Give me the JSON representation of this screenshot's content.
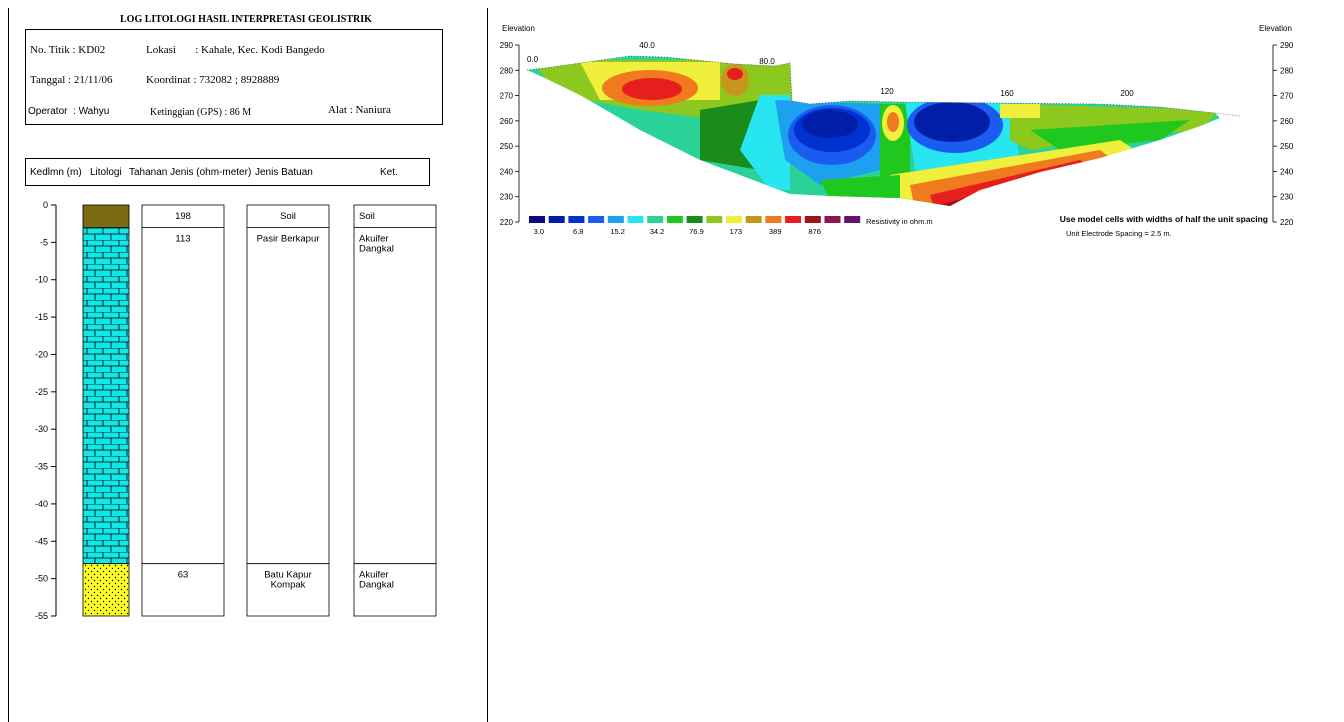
{
  "log": {
    "title": "LOG LITOLOGI HASIL INTERPRETASI GEOLISTRIK",
    "info": {
      "no_titik": "No. Titik : KD02",
      "lokasi": "Lokasi       : Kahale, Kec. Kodi Bangedo",
      "tanggal": "Tanggal : 21/11/06",
      "koordinat": "Koordinat : 732082 ; 8928889",
      "operator": "Operator  : Wahyu",
      "ketinggian": "Ketinggian (GPS) : 86 M",
      "alat": "Alat : Naniura"
    },
    "header": {
      "kedalaman": "Kedlmn (m)",
      "litologi": "Litologi",
      "tahanan": "Tahanan Jenis (ohm-meter)",
      "jenis": "Jenis Batuan",
      "ket": "Ket."
    },
    "depth_ticks": [
      "0",
      "-5",
      "-10",
      "-15",
      "-20",
      "-25",
      "-30",
      "-35",
      "-40",
      "-45",
      "-50",
      "-55"
    ],
    "layers": [
      {
        "top": 0,
        "bottom": -3,
        "resistivity": "198",
        "jenis": "Soil",
        "ket": "Soil",
        "color": "#7a6a12",
        "pattern": "solid"
      },
      {
        "top": -3,
        "bottom": -48,
        "resistivity": "113",
        "jenis": "Pasir Berkapur",
        "ket": "Akuifer Dangkal",
        "color": "#12e6e6",
        "pattern": "brick"
      },
      {
        "top": -48,
        "bottom": -55,
        "resistivity": "63",
        "jenis": "Batu Kapur Kompak",
        "ket": "Akuifer Dangkal",
        "color": "#ffff2a",
        "pattern": "dots"
      }
    ]
  },
  "section": {
    "elev_label_left": "Elevation",
    "elev_label_right": "Elevation",
    "elev_ticks": [
      "290",
      "280",
      "270",
      "260",
      "250",
      "240",
      "230",
      "220"
    ],
    "distance_labels": [
      "0.0",
      "40.0",
      "80.0",
      "120",
      "160",
      "200"
    ],
    "legend_values": [
      "3.0",
      "6.8",
      "15.2",
      "34.2",
      "76.9",
      "173",
      "389",
      "876"
    ],
    "legend_colors": [
      "#0a0a7a",
      "#001ea8",
      "#0032d2",
      "#1a5cf0",
      "#1ea0f0",
      "#28e6f0",
      "#2ad29a",
      "#1ec81e",
      "#1a8c1a",
      "#8cc81e",
      "#f0f03c",
      "#c8961e",
      "#f07a1e",
      "#e61e1e",
      "#a01414",
      "#8c1450",
      "#64146e"
    ],
    "legend_label": "Resistivity in ohm.m",
    "note_bold": "Use model cells with widths of half the unit spacing",
    "note": "Unit Electrode Spacing = 2.5 m."
  }
}
